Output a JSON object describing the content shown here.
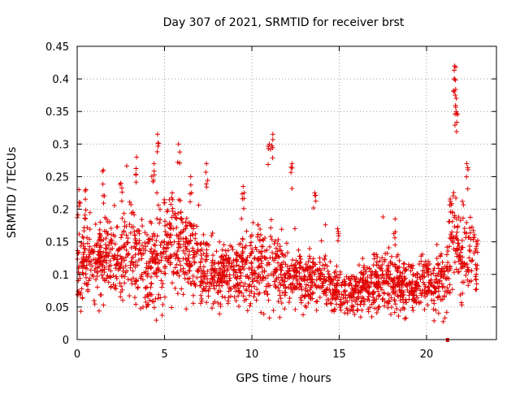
{
  "chart_data": {
    "type": "scatter",
    "title": "Day 307 of 2021, SRMTID for receiver brst",
    "xlabel": "GPS time / hours",
    "ylabel": "SRMTID / TECUs",
    "xlim": [
      0,
      24
    ],
    "ylim": [
      0,
      0.45
    ],
    "xticks": [
      0,
      5,
      10,
      15,
      20
    ],
    "xtick_labels": [
      "0",
      "5",
      "10",
      "15",
      "20"
    ],
    "yticks": [
      0,
      0.05,
      0.1,
      0.15,
      0.2,
      0.25,
      0.3,
      0.35,
      0.4,
      0.45
    ],
    "ytick_labels": [
      "0",
      "0.05",
      "0.1",
      "0.15",
      "0.2",
      "0.25",
      "0.3",
      "0.35",
      "0.4",
      "0.45"
    ],
    "grid": true,
    "marker": "+",
    "color": "#e00000",
    "series": [
      {
        "name": "SRMTID",
        "profile": {
          "x": [
            0,
            0.5,
            1,
            1.5,
            2,
            2.5,
            3,
            3.5,
            4,
            4.5,
            5,
            5.5,
            6,
            6.5,
            7,
            7.5,
            8,
            8.5,
            9,
            9.5,
            10,
            10.5,
            11,
            11.5,
            12,
            12.5,
            13,
            13.5,
            14,
            14.5,
            15,
            15.5,
            16,
            16.5,
            17,
            17.5,
            18,
            18.5,
            19,
            19.5,
            20,
            20.5,
            21,
            21.5,
            22,
            22.5,
            23
          ],
          "median": [
            0.11,
            0.12,
            0.12,
            0.13,
            0.12,
            0.12,
            0.13,
            0.12,
            0.11,
            0.12,
            0.13,
            0.14,
            0.14,
            0.13,
            0.11,
            0.1,
            0.1,
            0.1,
            0.1,
            0.11,
            0.11,
            0.11,
            0.12,
            0.11,
            0.1,
            0.1,
            0.09,
            0.09,
            0.09,
            0.08,
            0.08,
            0.07,
            0.07,
            0.08,
            0.08,
            0.09,
            0.09,
            0.08,
            0.08,
            0.08,
            0.09,
            0.09,
            0.09,
            0.15,
            0.14,
            0.12,
            0.12
          ],
          "spread": [
            0.05,
            0.05,
            0.05,
            0.06,
            0.05,
            0.05,
            0.06,
            0.06,
            0.06,
            0.07,
            0.07,
            0.07,
            0.07,
            0.06,
            0.05,
            0.04,
            0.04,
            0.04,
            0.04,
            0.05,
            0.05,
            0.05,
            0.06,
            0.05,
            0.04,
            0.04,
            0.04,
            0.04,
            0.04,
            0.03,
            0.03,
            0.03,
            0.03,
            0.03,
            0.03,
            0.04,
            0.04,
            0.04,
            0.03,
            0.03,
            0.04,
            0.04,
            0.04,
            0.07,
            0.06,
            0.05,
            0.04
          ]
        },
        "peaks": [
          {
            "x": 0.1,
            "y": 0.23
          },
          {
            "x": 0.5,
            "y": 0.23
          },
          {
            "x": 1.5,
            "y": 0.26
          },
          {
            "x": 2.5,
            "y": 0.24
          },
          {
            "x": 3.4,
            "y": 0.28
          },
          {
            "x": 4.4,
            "y": 0.27
          },
          {
            "x": 4.6,
            "y": 0.315
          },
          {
            "x": 5.8,
            "y": 0.3
          },
          {
            "x": 6.5,
            "y": 0.25
          },
          {
            "x": 7.4,
            "y": 0.27
          },
          {
            "x": 9.5,
            "y": 0.235
          },
          {
            "x": 11.0,
            "y": 0.3
          },
          {
            "x": 11.2,
            "y": 0.315
          },
          {
            "x": 12.3,
            "y": 0.27
          },
          {
            "x": 13.6,
            "y": 0.225
          },
          {
            "x": 14.9,
            "y": 0.17
          },
          {
            "x": 18.2,
            "y": 0.185
          },
          {
            "x": 21.6,
            "y": 0.42
          },
          {
            "x": 21.6,
            "y": 0.4
          },
          {
            "x": 21.7,
            "y": 0.37
          },
          {
            "x": 21.7,
            "y": 0.35
          },
          {
            "x": 22.3,
            "y": 0.27
          }
        ],
        "markers_on_axis": [
          {
            "x": 21.2,
            "y": 0
          }
        ]
      }
    ]
  }
}
